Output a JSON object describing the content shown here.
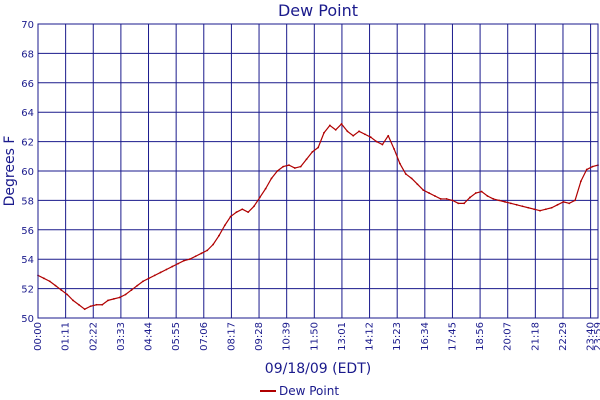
{
  "chart_data": {
    "type": "line",
    "title": "Dew Point",
    "xlabel": "09/18/09 (EDT)",
    "ylabel": "Degrees F",
    "ylim": [
      50,
      70
    ],
    "yticks": [
      50,
      52,
      54,
      56,
      58,
      60,
      62,
      64,
      66,
      68,
      70
    ],
    "xlim_minutes": [
      0,
      1439
    ],
    "xtick_labels": [
      "00:00",
      "01:11",
      "02:22",
      "03:33",
      "04:44",
      "05:55",
      "07:06",
      "08:17",
      "09:28",
      "10:39",
      "11:50",
      "13:01",
      "14:12",
      "15:23",
      "16:34",
      "17:45",
      "18:56",
      "20:07",
      "21:18",
      "22:29",
      "23:40",
      "23:59"
    ],
    "grid": true,
    "legend_position": "bottom-center",
    "colors": {
      "line": "#b00000",
      "grid": "#1a1a8c",
      "text": "#1a1a8c"
    },
    "series": [
      {
        "name": "Dew Point",
        "x": [
          "00:00",
          "00:15",
          "00:30",
          "00:45",
          "01:00",
          "01:15",
          "01:30",
          "01:45",
          "02:00",
          "02:15",
          "02:30",
          "02:45",
          "03:00",
          "03:15",
          "03:30",
          "03:45",
          "04:00",
          "04:15",
          "04:30",
          "04:45",
          "05:00",
          "05:15",
          "05:30",
          "05:45",
          "06:00",
          "06:15",
          "06:30",
          "06:45",
          "07:00",
          "07:15",
          "07:30",
          "07:45",
          "08:00",
          "08:15",
          "08:30",
          "08:45",
          "09:00",
          "09:15",
          "09:30",
          "09:45",
          "10:00",
          "10:15",
          "10:30",
          "10:45",
          "11:00",
          "11:15",
          "11:30",
          "11:45",
          "12:00",
          "12:15",
          "12:30",
          "12:45",
          "13:00",
          "13:15",
          "13:30",
          "13:45",
          "14:00",
          "14:15",
          "14:30",
          "14:45",
          "15:00",
          "15:15",
          "15:30",
          "15:45",
          "16:00",
          "16:15",
          "16:30",
          "16:45",
          "17:00",
          "17:15",
          "17:30",
          "17:45",
          "18:00",
          "18:15",
          "18:30",
          "18:45",
          "19:00",
          "19:15",
          "19:30",
          "19:45",
          "20:00",
          "20:15",
          "20:30",
          "20:45",
          "21:00",
          "21:15",
          "21:30",
          "21:45",
          "22:00",
          "22:15",
          "22:30",
          "22:45",
          "23:00",
          "23:15",
          "23:30",
          "23:45",
          "23:59"
        ],
        "values": [
          52.9,
          52.7,
          52.5,
          52.2,
          51.9,
          51.6,
          51.2,
          50.9,
          50.6,
          50.8,
          50.9,
          50.9,
          51.2,
          51.3,
          51.4,
          51.6,
          51.9,
          52.2,
          52.5,
          52.7,
          52.9,
          53.1,
          53.3,
          53.5,
          53.7,
          53.9,
          54.0,
          54.2,
          54.4,
          54.6,
          55.0,
          55.6,
          56.3,
          56.9,
          57.2,
          57.4,
          57.2,
          57.6,
          58.2,
          58.8,
          59.5,
          60.0,
          60.3,
          60.4,
          60.2,
          60.3,
          60.8,
          61.3,
          61.6,
          62.6,
          63.1,
          62.8,
          63.2,
          62.7,
          62.4,
          62.7,
          62.5,
          62.3,
          62.0,
          61.8,
          62.4,
          61.5,
          60.5,
          59.8,
          59.5,
          59.1,
          58.7,
          58.5,
          58.3,
          58.1,
          58.1,
          58.0,
          57.8,
          57.8,
          58.2,
          58.5,
          58.6,
          58.3,
          58.1,
          58.0,
          57.9,
          57.8,
          57.7,
          57.6,
          57.5,
          57.4,
          57.3,
          57.4,
          57.5,
          57.7,
          57.9,
          57.8,
          58.0,
          59.3,
          60.1,
          60.3,
          60.4
        ]
      }
    ]
  }
}
